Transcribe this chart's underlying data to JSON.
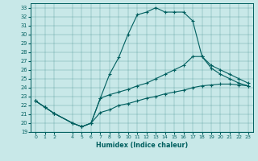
{
  "background_color": "#c8e8e8",
  "line_color": "#005f5f",
  "xlabel": "Humidex (Indice chaleur)",
  "xlim": [
    -0.5,
    23.5
  ],
  "ylim": [
    19.0,
    33.5
  ],
  "yticks": [
    19,
    20,
    21,
    22,
    23,
    24,
    25,
    26,
    27,
    28,
    29,
    30,
    31,
    32,
    33
  ],
  "xticks": [
    0,
    1,
    2,
    4,
    5,
    6,
    7,
    8,
    9,
    10,
    11,
    12,
    13,
    14,
    15,
    16,
    17,
    18,
    19,
    20,
    21,
    22,
    23
  ],
  "curve_top_x": [
    0,
    1,
    2,
    4,
    5,
    6,
    7,
    8,
    9,
    10,
    11,
    12,
    13,
    14,
    15,
    16,
    17,
    18,
    19,
    20,
    21,
    22,
    23
  ],
  "curve_top_y": [
    22.5,
    21.8,
    21.1,
    20.0,
    19.6,
    20.0,
    22.8,
    25.5,
    27.4,
    30.0,
    32.2,
    32.5,
    33.0,
    32.5,
    32.5,
    32.5,
    31.5,
    27.5,
    26.2,
    25.5,
    25.0,
    24.5,
    24.2
  ],
  "curve_mid_x": [
    0,
    1,
    2,
    4,
    5,
    6,
    7,
    8,
    9,
    10,
    11,
    12,
    13,
    14,
    15,
    16,
    17,
    18,
    19,
    20,
    21,
    22,
    23
  ],
  "curve_mid_y": [
    22.5,
    21.8,
    21.1,
    20.0,
    19.6,
    20.0,
    22.8,
    23.2,
    23.5,
    23.8,
    24.2,
    24.5,
    25.0,
    25.5,
    26.0,
    26.5,
    27.5,
    27.5,
    26.5,
    26.0,
    25.5,
    25.0,
    24.5
  ],
  "curve_bot_x": [
    0,
    1,
    2,
    4,
    5,
    6,
    7,
    8,
    9,
    10,
    11,
    12,
    13,
    14,
    15,
    16,
    17,
    18,
    19,
    20,
    21,
    22,
    23
  ],
  "curve_bot_y": [
    22.5,
    21.8,
    21.1,
    20.0,
    19.6,
    20.0,
    21.2,
    21.5,
    22.0,
    22.2,
    22.5,
    22.8,
    23.0,
    23.3,
    23.5,
    23.7,
    24.0,
    24.2,
    24.3,
    24.4,
    24.4,
    24.3,
    24.2
  ]
}
